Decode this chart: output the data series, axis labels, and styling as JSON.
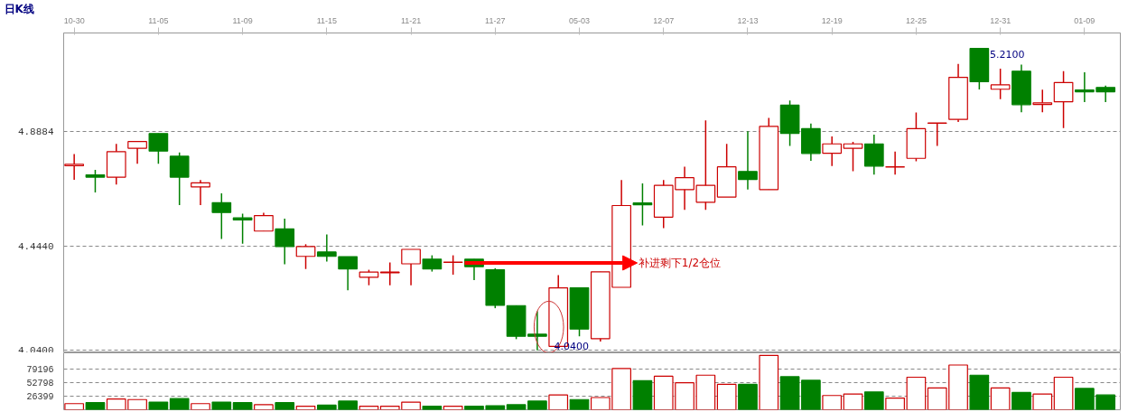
{
  "chart_data": [
    {
      "type": "candlestick",
      "title": "日K线",
      "categories": [
        "10-30",
        null,
        null,
        null,
        "11-05",
        null,
        null,
        null,
        "11-09",
        null,
        null,
        null,
        "11-15",
        null,
        null,
        null,
        "11-21",
        null,
        null,
        null,
        "11-27",
        null,
        null,
        null,
        "05-03",
        null,
        null,
        null,
        "12-07",
        null,
        null,
        null,
        "12-13",
        null,
        null,
        null,
        "12-19",
        null,
        null,
        null,
        "12-25",
        null,
        null,
        null,
        "12-31",
        null,
        null,
        null,
        "01-09",
        null
      ],
      "ohlc": [
        [
          4.755,
          4.801,
          4.701,
          4.761
        ],
        [
          4.72,
          4.739,
          4.652,
          4.711
        ],
        [
          4.711,
          4.84,
          4.682,
          4.81
        ],
        [
          4.823,
          4.85,
          4.763,
          4.849
        ],
        [
          4.88,
          4.88,
          4.763,
          4.812
        ],
        [
          4.792,
          4.807,
          4.603,
          4.711
        ],
        [
          4.673,
          4.7,
          4.603,
          4.689
        ],
        [
          4.612,
          4.648,
          4.471,
          4.574
        ],
        [
          4.553,
          4.569,
          4.453,
          4.545
        ],
        [
          4.502,
          4.573,
          4.502,
          4.562
        ],
        [
          4.51,
          4.55,
          4.373,
          4.442
        ],
        [
          4.404,
          4.451,
          4.355,
          4.442
        ],
        [
          4.421,
          4.489,
          4.384,
          4.404
        ],
        [
          4.403,
          4.403,
          4.273,
          4.355
        ],
        [
          4.323,
          4.352,
          4.292,
          4.343
        ],
        [
          4.34,
          4.38,
          4.292,
          4.343
        ],
        [
          4.375,
          4.431,
          4.292,
          4.431
        ],
        [
          4.393,
          4.408,
          4.345,
          4.355
        ],
        [
          4.381,
          4.408,
          4.333,
          4.382
        ],
        [
          4.393,
          4.393,
          4.312,
          4.364
        ],
        [
          4.352,
          4.358,
          4.203,
          4.214
        ],
        [
          4.213,
          4.213,
          4.083,
          4.094
        ],
        [
          4.102,
          4.191,
          4.04,
          4.094
        ],
        [
          4.055,
          4.331,
          4.055,
          4.282
        ],
        [
          4.282,
          4.282,
          4.094,
          4.122
        ],
        [
          4.085,
          4.344,
          4.074,
          4.344
        ],
        [
          4.284,
          4.7,
          4.284,
          4.601
        ],
        [
          4.611,
          4.687,
          4.524,
          4.604
        ],
        [
          4.556,
          4.7,
          4.513,
          4.679
        ],
        [
          4.663,
          4.752,
          4.584,
          4.709
        ],
        [
          4.614,
          4.931,
          4.584,
          4.679
        ],
        [
          4.634,
          4.84,
          4.634,
          4.751
        ],
        [
          4.733,
          4.889,
          4.663,
          4.702
        ],
        [
          4.663,
          4.941,
          4.663,
          4.908
        ],
        [
          4.99,
          5.008,
          4.832,
          4.881
        ],
        [
          4.899,
          4.919,
          4.774,
          4.803
        ],
        [
          4.804,
          4.869,
          4.754,
          4.84
        ],
        [
          4.823,
          4.848,
          4.734,
          4.84
        ],
        [
          4.84,
          4.876,
          4.721,
          4.754
        ],
        [
          4.75,
          4.81,
          4.721,
          4.751
        ],
        [
          4.784,
          4.962,
          4.773,
          4.899
        ],
        [
          4.92,
          4.921,
          4.832,
          4.921
        ],
        [
          4.935,
          5.15,
          4.925,
          5.098
        ],
        [
          5.21,
          5.21,
          5.051,
          5.081
        ],
        [
          5.052,
          5.132,
          5.013,
          5.069
        ],
        [
          5.122,
          5.147,
          4.963,
          4.992
        ],
        [
          4.993,
          5.05,
          4.963,
          4.999
        ],
        [
          5.003,
          5.122,
          4.901,
          5.078
        ],
        [
          5.049,
          5.118,
          5.002,
          5.042
        ],
        [
          5.059,
          5.066,
          5.002,
          5.042
        ]
      ],
      "colors": [
        "#cc0000",
        "#008000",
        "#cc0000",
        "#cc0000",
        "#008000",
        "#008000",
        "#cc0000",
        "#008000",
        "#008000",
        "#cc0000",
        "#008000",
        "#cc0000",
        "#008000",
        "#008000",
        "#cc0000",
        "#cc0000",
        "#cc0000",
        "#008000",
        "#cc0000",
        "#008000",
        "#008000",
        "#008000",
        "#008000",
        "#cc0000",
        "#008000",
        "#cc0000",
        "#cc0000",
        "#008000",
        "#cc0000",
        "#cc0000",
        "#cc0000",
        "#cc0000",
        "#008000",
        "#cc0000",
        "#008000",
        "#008000",
        "#cc0000",
        "#cc0000",
        "#008000",
        "#cc0000",
        "#cc0000",
        "#cc0000",
        "#cc0000",
        "#008000",
        "#cc0000",
        "#008000",
        "#cc0000",
        "#cc0000",
        "#008000",
        "#008000"
      ],
      "ylim": [
        4.03,
        5.27
      ],
      "yticks": [
        {
          "value": 4.04,
          "label": "4.0400"
        },
        {
          "value": 4.444,
          "label": "4.4440"
        },
        {
          "value": 4.8884,
          "label": "4.8884"
        }
      ],
      "grid": "y",
      "annotations": [
        "5.2100",
        "4.0400",
        "补进剩下1/2仓位"
      ]
    },
    {
      "type": "bar",
      "categories": [
        null,
        null,
        null,
        null,
        null,
        null,
        null,
        null,
        null,
        null,
        null,
        null,
        null,
        null,
        null,
        null,
        null,
        null,
        null,
        null,
        null,
        null,
        null,
        null,
        null,
        null,
        null,
        null,
        null,
        null,
        null,
        null,
        null,
        null,
        null,
        null,
        null,
        null,
        null,
        null,
        null,
        null,
        null,
        null,
        null,
        null,
        null,
        null,
        null,
        null
      ],
      "values": [
        12000,
        14000,
        21000,
        20000,
        15000,
        22000,
        12000,
        15000,
        14000,
        10000,
        14000,
        7000,
        9000,
        17000,
        7000,
        7000,
        15000,
        7000,
        7000,
        7000,
        8000,
        10000,
        17000,
        29000,
        20000,
        24000,
        81000,
        57000,
        66000,
        53000,
        68000,
        50000,
        50000,
        107000,
        65000,
        58000,
        28000,
        31000,
        35000,
        23000,
        64000,
        43000,
        88000,
        68000,
        43000,
        34000,
        31000,
        64000,
        42000,
        29000
      ],
      "colors": [
        "#cc0000",
        "#008000",
        "#cc0000",
        "#cc0000",
        "#008000",
        "#008000",
        "#cc0000",
        "#008000",
        "#008000",
        "#cc0000",
        "#008000",
        "#cc0000",
        "#008000",
        "#008000",
        "#cc0000",
        "#cc0000",
        "#cc0000",
        "#008000",
        "#cc0000",
        "#008000",
        "#008000",
        "#008000",
        "#008000",
        "#cc0000",
        "#008000",
        "#cc0000",
        "#cc0000",
        "#008000",
        "#cc0000",
        "#cc0000",
        "#cc0000",
        "#cc0000",
        "#008000",
        "#cc0000",
        "#008000",
        "#008000",
        "#cc0000",
        "#cc0000",
        "#008000",
        "#cc0000",
        "#cc0000",
        "#cc0000",
        "#cc0000",
        "#008000",
        "#cc0000",
        "#008000",
        "#cc0000",
        "#cc0000",
        "#008000",
        "#008000"
      ],
      "ylim": [
        0,
        112000
      ],
      "yticks": [
        26399,
        52798,
        79196
      ],
      "grid": "y"
    }
  ]
}
